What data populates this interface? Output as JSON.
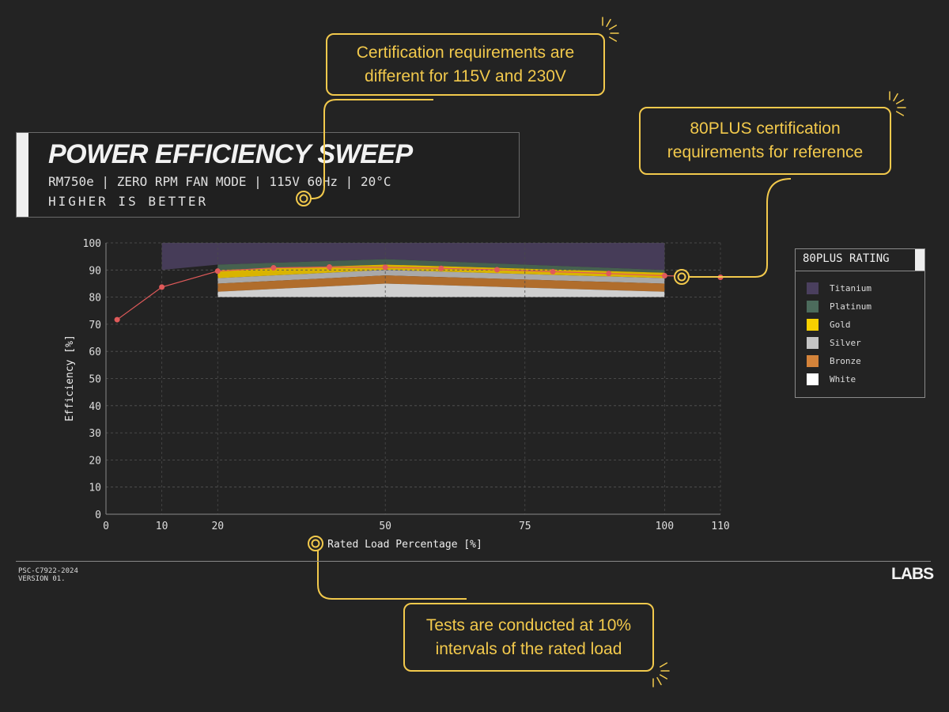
{
  "header": {
    "title": "POWER EFFICIENCY SWEEP",
    "subtitle": "RM750e | ZERO RPM FAN MODE | 115V 60Hz | 20°C",
    "note": "HIGHER IS BETTER"
  },
  "callouts": [
    {
      "text_line1": "Certification requirements are",
      "text_line2": "different for 115V and 230V"
    },
    {
      "text_line1": "80PLUS certification",
      "text_line2": "requirements for reference"
    },
    {
      "text_line1": "Tests are conducted at 10%",
      "text_line2": "intervals of the rated load"
    }
  ],
  "legend": {
    "title": "80PLUS RATING",
    "items": [
      {
        "label": "Titanium",
        "color": "#4a3f5e"
      },
      {
        "label": "Platinum",
        "color": "#4c6b5c"
      },
      {
        "label": "Gold",
        "color": "#f7d000"
      },
      {
        "label": "Silver",
        "color": "#c4c4c4"
      },
      {
        "label": "Bronze",
        "color": "#d4833a"
      },
      {
        "label": "White",
        "color": "#ffffff"
      }
    ]
  },
  "chart_data": {
    "type": "line",
    "xlabel": "Rated Load Percentage [%]",
    "ylabel": "Efficiency [%]",
    "xlim": [
      0,
      110
    ],
    "ylim": [
      0,
      100
    ],
    "xticks": [
      0,
      10,
      20,
      50,
      75,
      100,
      110
    ],
    "yticks": [
      0,
      10,
      20,
      30,
      40,
      50,
      60,
      70,
      80,
      90,
      100
    ],
    "grid": true,
    "legend_placement": "right",
    "series": [
      {
        "x": [
          2,
          10,
          20,
          30,
          40,
          50,
          60,
          70,
          80,
          90,
          100,
          110
        ],
        "y": [
          71.7,
          83.7,
          89.6,
          90.8,
          91.1,
          91.0,
          90.6,
          90.1,
          89.4,
          88.7,
          87.9,
          87.3
        ],
        "color": "#e05a5a"
      }
    ],
    "bands": [
      {
        "label": "Titanium",
        "x": [
          10,
          20,
          50,
          100
        ],
        "y": [
          90,
          92,
          94,
          90
        ]
      },
      {
        "label": "Platinum",
        "x": [
          20,
          50,
          100
        ],
        "y": [
          90,
          92,
          89
        ]
      },
      {
        "label": "Gold",
        "x": [
          20,
          50,
          100
        ],
        "y": [
          87,
          90,
          87
        ]
      },
      {
        "label": "Silver",
        "x": [
          20,
          50,
          100
        ],
        "y": [
          85,
          88,
          85
        ]
      },
      {
        "label": "Bronze",
        "x": [
          20,
          50,
          100
        ],
        "y": [
          82,
          85,
          82
        ]
      },
      {
        "label": "White",
        "x": [
          20,
          50,
          100
        ],
        "y": [
          80,
          80,
          80
        ]
      }
    ]
  },
  "footer": {
    "code": "PSC-C7922-2024",
    "version": "VERSION 01.",
    "logo": "LABS"
  }
}
